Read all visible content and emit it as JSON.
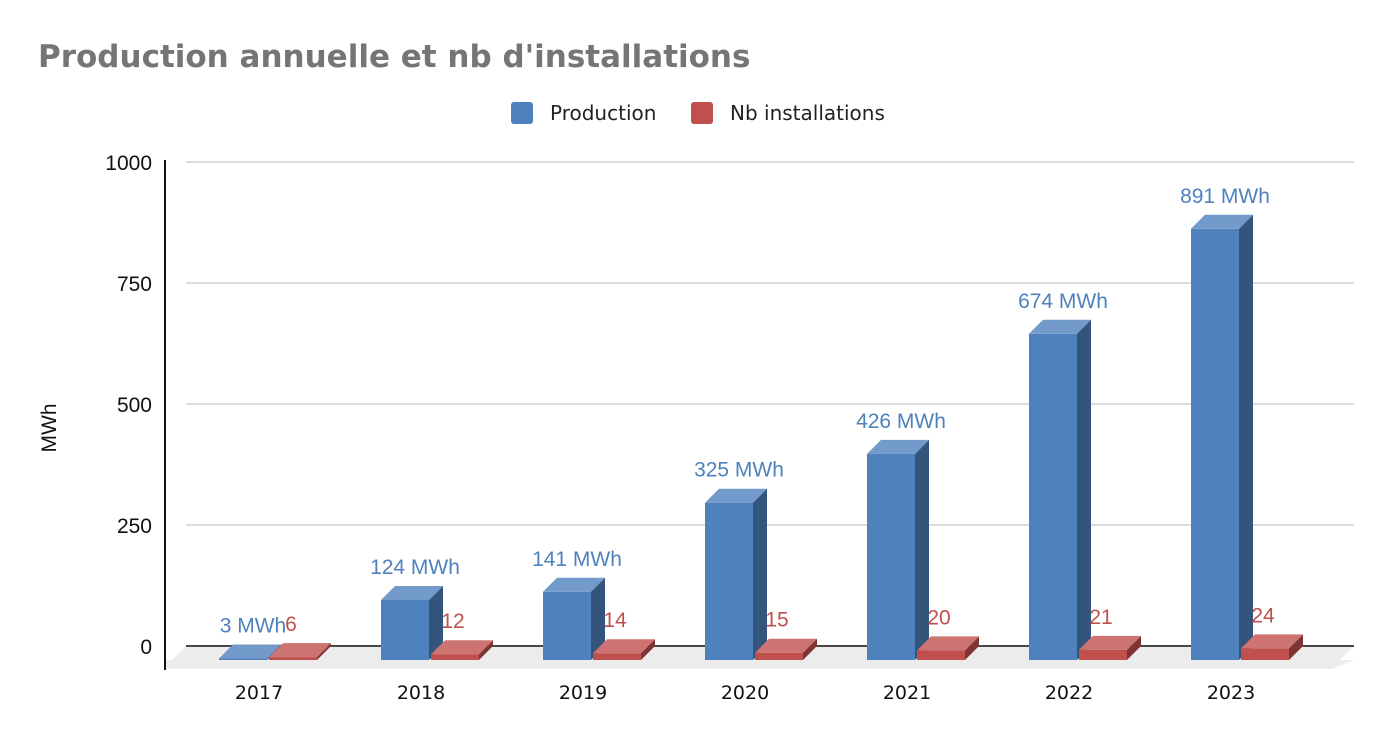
{
  "chart_data": {
    "type": "bar",
    "title": "Production annuelle et  nb d'installations",
    "ylabel": "MWh",
    "xlabel": "",
    "categories": [
      "2017",
      "2018",
      "2019",
      "2020",
      "2021",
      "2022",
      "2023"
    ],
    "ylim": [
      0,
      1000
    ],
    "yticks": [
      "0",
      "250",
      "500",
      "750",
      "1000"
    ],
    "grid": true,
    "legend_position": "top",
    "series": [
      {
        "name": "Production",
        "color": "#4f81bd",
        "values": [
          3,
          124,
          141,
          325,
          426,
          674,
          891
        ],
        "labels": [
          "3 MWh",
          "124 MWh",
          "141 MWh",
          "325 MWh",
          "426 MWh",
          "674 MWh",
          "891 MWh"
        ]
      },
      {
        "name": "Nb installations",
        "color": "#c0504d",
        "values": [
          6,
          12,
          14,
          15,
          20,
          21,
          24
        ],
        "labels": [
          "6",
          "12",
          "14",
          "15",
          "20",
          "21",
          "24"
        ]
      }
    ]
  }
}
